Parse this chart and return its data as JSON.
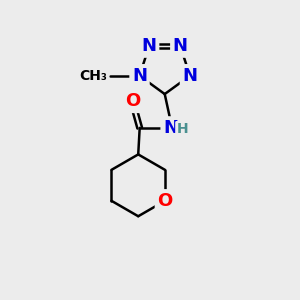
{
  "background_color": "#ececec",
  "atom_colors": {
    "N": "#0000dd",
    "O": "#ff0000",
    "C": "#000000",
    "NH": "#4a9090"
  },
  "bond_color": "#000000",
  "lw": 1.8,
  "fs": 13,
  "fs_methyl": 10
}
